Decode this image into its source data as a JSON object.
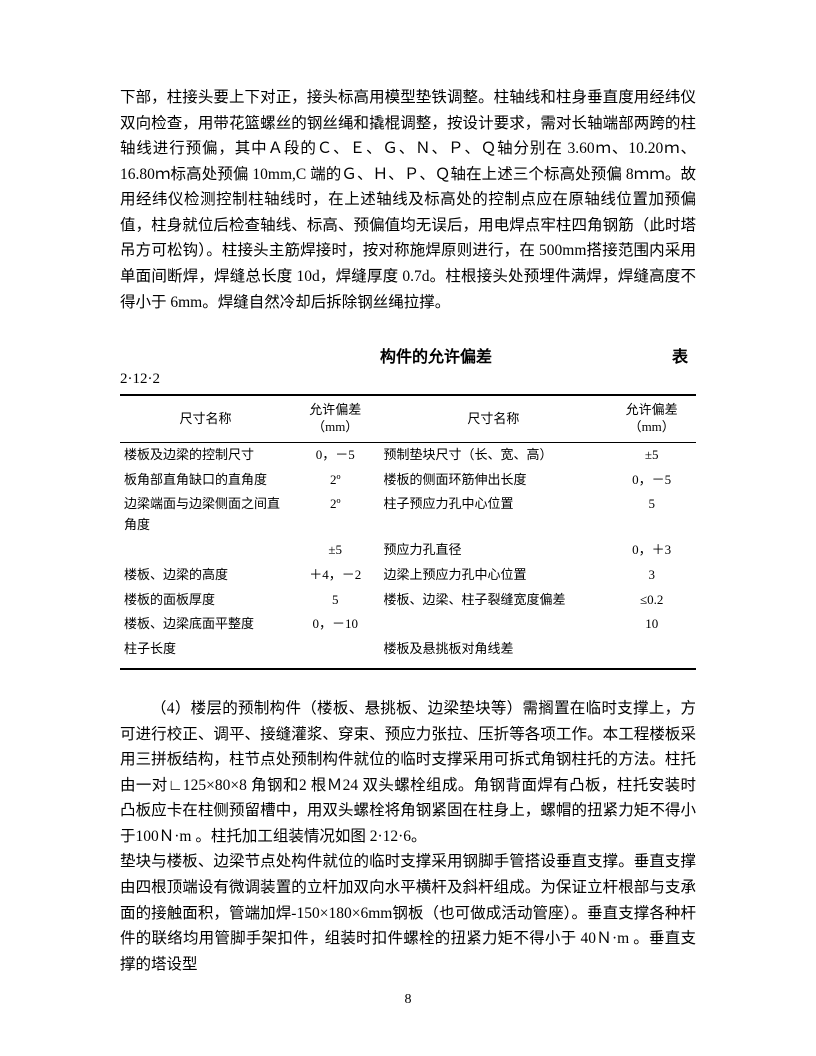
{
  "paragraph1": "下部，柱接头要上下对正，接头标高用模型垫铁调整。柱轴线和柱身垂直度用经纬仪双向检查，用带花篮螺丝的钢丝绳和撬棍调整，按设计要求，需对长轴端部两跨的柱轴线进行预偏，其中Ａ段的Ｃ、Ｅ、Ｇ、Ｎ、Ｐ、Ｑ轴分别在 3.60ｍ、10.20ｍ、16.80ｍ标高处预偏 10mm,C 端的Ｇ、Ｈ、Ｐ、Ｑ轴在上述三个标高处预偏 8ｍｍ。故用经纬仪检测控制柱轴线时，在上述轴线及标高处的控制点应在原轴线位置加预偏值，柱身就位后检查轴线、标高、预偏值均无误后，用电焊点牢柱四角钢筋（此时塔吊方可松钩）。柱接头主筋焊接时，按对称施焊原则进行，在 500mm搭接范围内采用单面间断焊，焊缝总长度 10d，焊缝厚度 0.7d。柱根接头处预埋件满焊，焊缝高度不得小于 6mm。焊缝自然冷却后拆除钢丝绳拉撑。",
  "table": {
    "title": "构件的允许偏差",
    "label": "表",
    "number": "2·12·2",
    "headers": {
      "name": "尺寸名称",
      "tol": "允许偏差\n（mm）"
    },
    "left": [
      {
        "name": "楼板及边梁的控制尺寸",
        "tol": "0，－5"
      },
      {
        "name": "板角部直角缺口的直角度",
        "tol": "2º"
      },
      {
        "name": "边梁端面与边梁侧面之间直角度",
        "tol": "2º"
      },
      {
        "name": "",
        "tol": "±5"
      },
      {
        "name": "楼板、边梁的高度",
        "tol": "＋4，－2"
      },
      {
        "name": "楼板的面板厚度",
        "tol": "5"
      },
      {
        "name": "楼板、边梁底面平整度",
        "tol": "0，－10"
      },
      {
        "name": "柱子长度",
        "tol": ""
      }
    ],
    "right": [
      {
        "name": "预制垫块尺寸（长、宽、高）",
        "tol": "±5"
      },
      {
        "name": "楼板的侧面环筋伸出长度",
        "tol": "0，－5"
      },
      {
        "name": "柱子预应力孔中心位置",
        "tol": "5"
      },
      {
        "name": "预应力孔直径",
        "tol": "0，＋3"
      },
      {
        "name": "边梁上预应力孔中心位置",
        "tol": "3"
      },
      {
        "name": "楼板、边梁、柱子裂缝宽度偏差",
        "tol": "≤0.2"
      },
      {
        "name": "",
        "tol": "10"
      },
      {
        "name": "楼板及悬挑板对角线差",
        "tol": ""
      }
    ]
  },
  "paragraph2_indent": "（4）楼层的预制构件（楼板、悬挑板、边梁垫块等）需搁置在临时支撑上，方可进行校正、调平、接缝灌浆、穿束、预应力张拉、压折等各项工作。本工程楼板采用三拼板结构，柱节点处预制构件就位的临时支撑采用可拆式角钢柱托的方法。柱托由一对∟125×80×8 角钢和2 根Ｍ24 双头螺栓组成。角钢背面焊有凸板，柱托安装时凸板应卡在柱侧预留槽中，用双头螺栓将角钢紧固在柱身上，螺帽的扭紧力矩不得小于100Ｎ·m 。柱托加工组装情况如图 2·12·6。",
  "paragraph2_rest": "垫块与楼板、边梁节点处构件就位的临时支撑采用钢脚手管搭设垂直支撑。垂直支撑由四根顶端设有微调装置的立杆加双向水平横杆及斜杆组成。为保证立杆根部与支承面的接触面积，管端加焊-150×180×6mm钢板（也可做成活动管座）。垂直支撑各种杆件的联络均用管脚手架扣件，组装时扣件螺栓的扭紧力矩不得小于 40Ｎ·m 。垂直支撑的塔设型",
  "pageNumber": "8"
}
